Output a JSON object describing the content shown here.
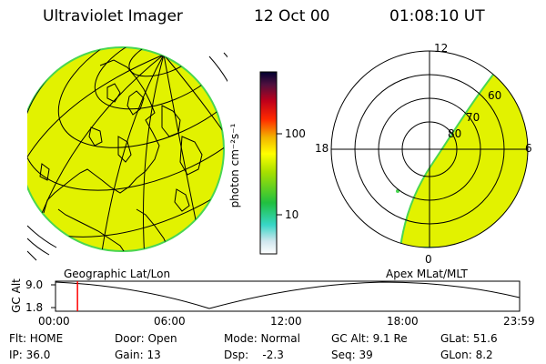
{
  "header": {
    "title": "Ultraviolet Imager",
    "date": "12 Oct 00",
    "time": "01:08:10 UT"
  },
  "colorbar": {
    "unit_label": "photon cm⁻²s⁻¹",
    "ticks": [
      "100",
      "10"
    ]
  },
  "map_labels": {
    "left": "Geographic Lat/Lon",
    "right": "Apex MLat/MLT"
  },
  "polar": {
    "mlt_labels": [
      "12",
      "18",
      "6",
      "0"
    ],
    "lat_labels": [
      "60",
      "70",
      "80"
    ]
  },
  "altitude_plot": {
    "axis_label": "GC Alt",
    "y_ticks": [
      "9.0",
      "1.8"
    ],
    "x_ticks": [
      "00:00",
      "06:00",
      "12:00",
      "18:00",
      "23:59"
    ],
    "current_time_hours": 1.136
  },
  "info": {
    "flt": "Flt: HOME",
    "door": "Door: Open",
    "mode": "Mode: Normal",
    "gc_alt": "GC Alt: 9.1 Re",
    "glat": "GLat: 51.6",
    "ip": "IP: 36.0",
    "gain": "Gain: 13",
    "dsp": "Dsp:    -2.3",
    "seq": "Seq: 39",
    "glon": "GLon: 8.2"
  },
  "colors": {
    "aurora_fill": "#e2f200",
    "edge_green": "#49d651",
    "marker_red": "#ff0000"
  }
}
